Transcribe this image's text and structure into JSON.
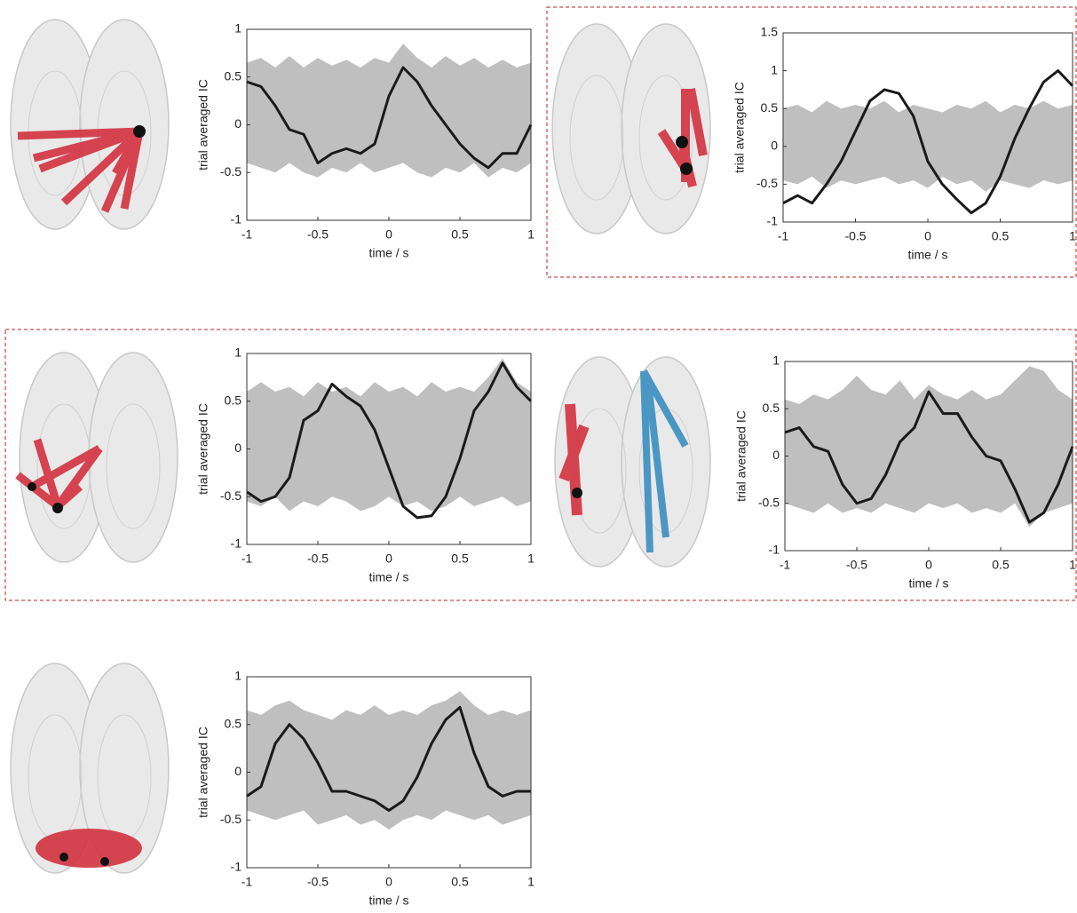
{
  "chart_data": [
    {
      "type": "line",
      "xlabel": "time / s",
      "ylabel": "trial averaged IC",
      "x": [
        -1,
        -0.9,
        -0.8,
        -0.7,
        -0.6,
        -0.5,
        -0.4,
        -0.3,
        -0.2,
        -0.1,
        0,
        0.1,
        0.2,
        0.3,
        0.4,
        0.5,
        0.6,
        0.7,
        0.8,
        0.9,
        1
      ],
      "series": [
        {
          "color": "#1a1a1a",
          "values": [
            0.45,
            0.4,
            0.2,
            -0.05,
            -0.1,
            -0.4,
            -0.3,
            -0.25,
            -0.3,
            -0.2,
            0.3,
            0.6,
            0.45,
            0.2,
            0,
            -0.2,
            -0.35,
            -0.45,
            -0.3,
            -0.3,
            0
          ]
        }
      ],
      "band": {
        "color": "#bfbfbf",
        "upper": [
          0.65,
          0.7,
          0.6,
          0.72,
          0.6,
          0.7,
          0.62,
          0.68,
          0.6,
          0.7,
          0.65,
          0.85,
          0.7,
          0.6,
          0.72,
          0.62,
          0.7,
          0.6,
          0.68,
          0.6,
          0.65
        ],
        "lower": [
          -0.4,
          -0.45,
          -0.5,
          -0.4,
          -0.5,
          -0.55,
          -0.45,
          -0.5,
          -0.4,
          -0.5,
          -0.45,
          -0.4,
          -0.5,
          -0.55,
          -0.45,
          -0.5,
          -0.4,
          -0.55,
          -0.45,
          -0.5,
          -0.4
        ]
      },
      "xlim": [
        -1,
        1
      ],
      "ylim": [
        -1,
        1
      ],
      "xticks": [
        -1,
        -0.5,
        0,
        0.5,
        1
      ],
      "yticks": [
        -1,
        -0.5,
        0,
        0.5,
        1
      ]
    },
    {
      "type": "line",
      "xlabel": "time / s",
      "ylabel": "trial averaged IC",
      "x": [
        -1,
        -0.9,
        -0.8,
        -0.7,
        -0.6,
        -0.5,
        -0.4,
        -0.3,
        -0.2,
        -0.1,
        0,
        0.1,
        0.2,
        0.3,
        0.4,
        0.5,
        0.6,
        0.7,
        0.8,
        0.9,
        1
      ],
      "series": [
        {
          "color": "#1a1a1a",
          "values": [
            -0.75,
            -0.65,
            -0.75,
            -0.5,
            -0.2,
            0.2,
            0.6,
            0.75,
            0.7,
            0.4,
            -0.2,
            -0.5,
            -0.7,
            -0.88,
            -0.75,
            -0.4,
            0.1,
            0.5,
            0.85,
            1,
            0.8
          ]
        }
      ],
      "band": {
        "color": "#bfbfbf",
        "upper": [
          0.5,
          0.55,
          0.45,
          0.6,
          0.5,
          0.55,
          0.5,
          0.6,
          0.45,
          0.55,
          0.5,
          0.45,
          0.55,
          0.5,
          0.6,
          0.45,
          0.55,
          0.5,
          0.6,
          0.5,
          0.55
        ],
        "lower": [
          -0.45,
          -0.5,
          -0.4,
          -0.55,
          -0.45,
          -0.5,
          -0.45,
          -0.4,
          -0.5,
          -0.45,
          -0.55,
          -0.4,
          -0.5,
          -0.45,
          -0.6,
          -0.45,
          -0.5,
          -0.55,
          -0.45,
          -0.5,
          -0.45
        ]
      },
      "xlim": [
        -1,
        1
      ],
      "ylim": [
        -1,
        1.5
      ],
      "xticks": [
        -1,
        -0.5,
        0,
        0.5,
        1
      ],
      "yticks": [
        -1,
        -0.5,
        0,
        0.5,
        1,
        1.5
      ]
    },
    {
      "type": "line",
      "xlabel": "time / s",
      "ylabel": "trial averaged IC",
      "x": [
        -1,
        -0.9,
        -0.8,
        -0.7,
        -0.6,
        -0.5,
        -0.4,
        -0.3,
        -0.2,
        -0.1,
        0,
        0.1,
        0.2,
        0.3,
        0.4,
        0.5,
        0.6,
        0.7,
        0.8,
        0.9,
        1
      ],
      "series": [
        {
          "color": "#1a1a1a",
          "values": [
            -0.45,
            -0.55,
            -0.5,
            -0.3,
            0.3,
            0.4,
            0.68,
            0.55,
            0.45,
            0.2,
            -0.2,
            -0.6,
            -0.72,
            -0.7,
            -0.5,
            -0.1,
            0.4,
            0.6,
            0.9,
            0.65,
            0.5
          ]
        }
      ],
      "band": {
        "color": "#bfbfbf",
        "upper": [
          0.6,
          0.7,
          0.6,
          0.65,
          0.55,
          0.7,
          0.6,
          0.65,
          0.55,
          0.7,
          0.6,
          0.65,
          0.55,
          0.7,
          0.6,
          0.65,
          0.6,
          0.75,
          0.95,
          0.7,
          0.6
        ],
        "lower": [
          -0.55,
          -0.6,
          -0.5,
          -0.65,
          -0.55,
          -0.6,
          -0.5,
          -0.55,
          -0.65,
          -0.6,
          -0.5,
          -0.6,
          -0.55,
          -0.65,
          -0.6,
          -0.5,
          -0.6,
          -0.55,
          -0.5,
          -0.6,
          -0.55
        ]
      },
      "xlim": [
        -1,
        1
      ],
      "ylim": [
        -1,
        1
      ],
      "xticks": [
        -1,
        -0.5,
        0,
        0.5,
        1
      ],
      "yticks": [
        -1,
        -0.5,
        0,
        0.5,
        1
      ]
    },
    {
      "type": "line",
      "xlabel": "time / s",
      "ylabel": "trial averaged IC",
      "x": [
        -1,
        -0.9,
        -0.8,
        -0.7,
        -0.6,
        -0.5,
        -0.4,
        -0.3,
        -0.2,
        -0.1,
        0,
        0.1,
        0.2,
        0.3,
        0.4,
        0.5,
        0.6,
        0.7,
        0.8,
        0.9,
        1
      ],
      "series": [
        {
          "color": "#1a1a1a",
          "values": [
            0.25,
            0.3,
            0.1,
            0.05,
            -0.3,
            -0.5,
            -0.45,
            -0.2,
            0.15,
            0.3,
            0.68,
            0.45,
            0.45,
            0.2,
            0,
            -0.05,
            -0.35,
            -0.7,
            -0.6,
            -0.3,
            0.1
          ]
        }
      ],
      "band": {
        "color": "#bfbfbf",
        "upper": [
          0.6,
          0.55,
          0.65,
          0.6,
          0.7,
          0.85,
          0.7,
          0.65,
          0.8,
          0.6,
          0.75,
          0.65,
          0.6,
          0.7,
          0.6,
          0.65,
          0.8,
          0.95,
          0.9,
          0.7,
          0.6
        ],
        "lower": [
          -0.5,
          -0.55,
          -0.6,
          -0.5,
          -0.6,
          -0.55,
          -0.6,
          -0.5,
          -0.55,
          -0.6,
          -0.5,
          -0.55,
          -0.5,
          -0.6,
          -0.55,
          -0.6,
          -0.5,
          -0.75,
          -0.6,
          -0.55,
          -0.5
        ]
      },
      "xlim": [
        -1,
        1
      ],
      "ylim": [
        -1,
        1
      ],
      "xticks": [
        -1,
        -0.5,
        0,
        0.5,
        1
      ],
      "yticks": [
        -1,
        -0.5,
        0,
        0.5,
        1
      ]
    },
    {
      "type": "line",
      "xlabel": "time / s",
      "ylabel": "trial averaged IC",
      "x": [
        -1,
        -0.9,
        -0.8,
        -0.7,
        -0.6,
        -0.5,
        -0.4,
        -0.3,
        -0.2,
        -0.1,
        0,
        0.1,
        0.2,
        0.3,
        0.4,
        0.5,
        0.6,
        0.7,
        0.8,
        0.9,
        1
      ],
      "series": [
        {
          "color": "#1a1a1a",
          "values": [
            -0.25,
            -0.15,
            0.3,
            0.5,
            0.35,
            0.1,
            -0.2,
            -0.2,
            -0.25,
            -0.3,
            -0.4,
            -0.3,
            -0.05,
            0.3,
            0.55,
            0.68,
            0.2,
            -0.15,
            -0.25,
            -0.2,
            -0.2
          ]
        }
      ],
      "band": {
        "color": "#bfbfbf",
        "upper": [
          0.65,
          0.6,
          0.7,
          0.75,
          0.65,
          0.6,
          0.55,
          0.65,
          0.6,
          0.7,
          0.6,
          0.65,
          0.6,
          0.7,
          0.75,
          0.85,
          0.7,
          0.6,
          0.65,
          0.6,
          0.65
        ],
        "lower": [
          -0.4,
          -0.45,
          -0.5,
          -0.45,
          -0.4,
          -0.55,
          -0.5,
          -0.45,
          -0.55,
          -0.5,
          -0.6,
          -0.5,
          -0.45,
          -0.5,
          -0.4,
          -0.45,
          -0.5,
          -0.45,
          -0.55,
          -0.5,
          -0.45
        ]
      },
      "xlim": [
        -1,
        1
      ],
      "ylim": [
        -1,
        1
      ],
      "xticks": [
        -1,
        -0.5,
        0,
        0.5,
        1
      ],
      "yticks": [
        -1,
        -0.5,
        0,
        0.5,
        1
      ]
    }
  ]
}
